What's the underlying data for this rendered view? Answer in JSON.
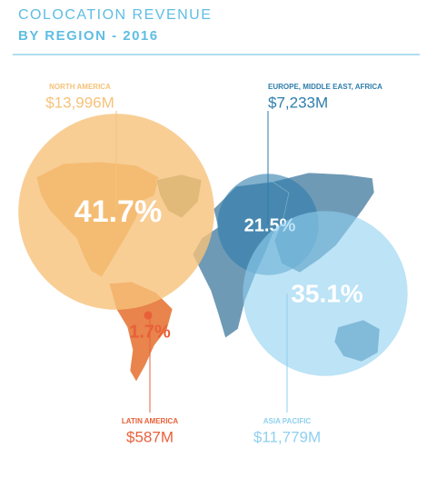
{
  "chart_data": {
    "type": "bubble",
    "title": "COLOCATION REVENUE",
    "subtitle": "BY REGION - 2016",
    "categories": [
      "NORTH AMERICA",
      "EUROPE, MIDDLE EAST, AFRICA",
      "LATIN AMERICA",
      "ASIA PACIFIC"
    ],
    "values": [
      13996,
      7233,
      587,
      11779
    ],
    "value_labels": [
      "$13,996M",
      "$7,233M",
      "$587M",
      "$11,779M"
    ],
    "shares": [
      41.7,
      21.5,
      1.7,
      35.1
    ],
    "share_labels": [
      "41.7%",
      "21.5%",
      "1.7%",
      "35.1%"
    ],
    "colors": [
      "#f6c27a",
      "#2e7dac",
      "#e8603a",
      "#8fd0f0"
    ]
  }
}
